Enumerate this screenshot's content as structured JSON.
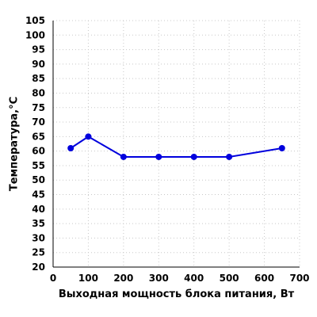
{
  "chart_data": {
    "type": "line",
    "title": "",
    "xlabel": "Выходная мощность блока питания, Вт",
    "ylabel": "Температура,°С",
    "xlim": [
      0,
      700
    ],
    "ylim": [
      20,
      105
    ],
    "x_ticks": [
      0,
      100,
      200,
      300,
      400,
      500,
      600,
      700
    ],
    "y_ticks": [
      20,
      25,
      30,
      35,
      40,
      45,
      50,
      55,
      60,
      65,
      70,
      75,
      80,
      85,
      90,
      95,
      100,
      105
    ],
    "grid": true,
    "series": [
      {
        "color": "#0000dd",
        "x": [
          50,
          100,
          200,
          300,
          400,
          500,
          650
        ],
        "y": [
          61,
          65,
          58,
          58,
          58,
          58,
          61
        ]
      }
    ]
  }
}
